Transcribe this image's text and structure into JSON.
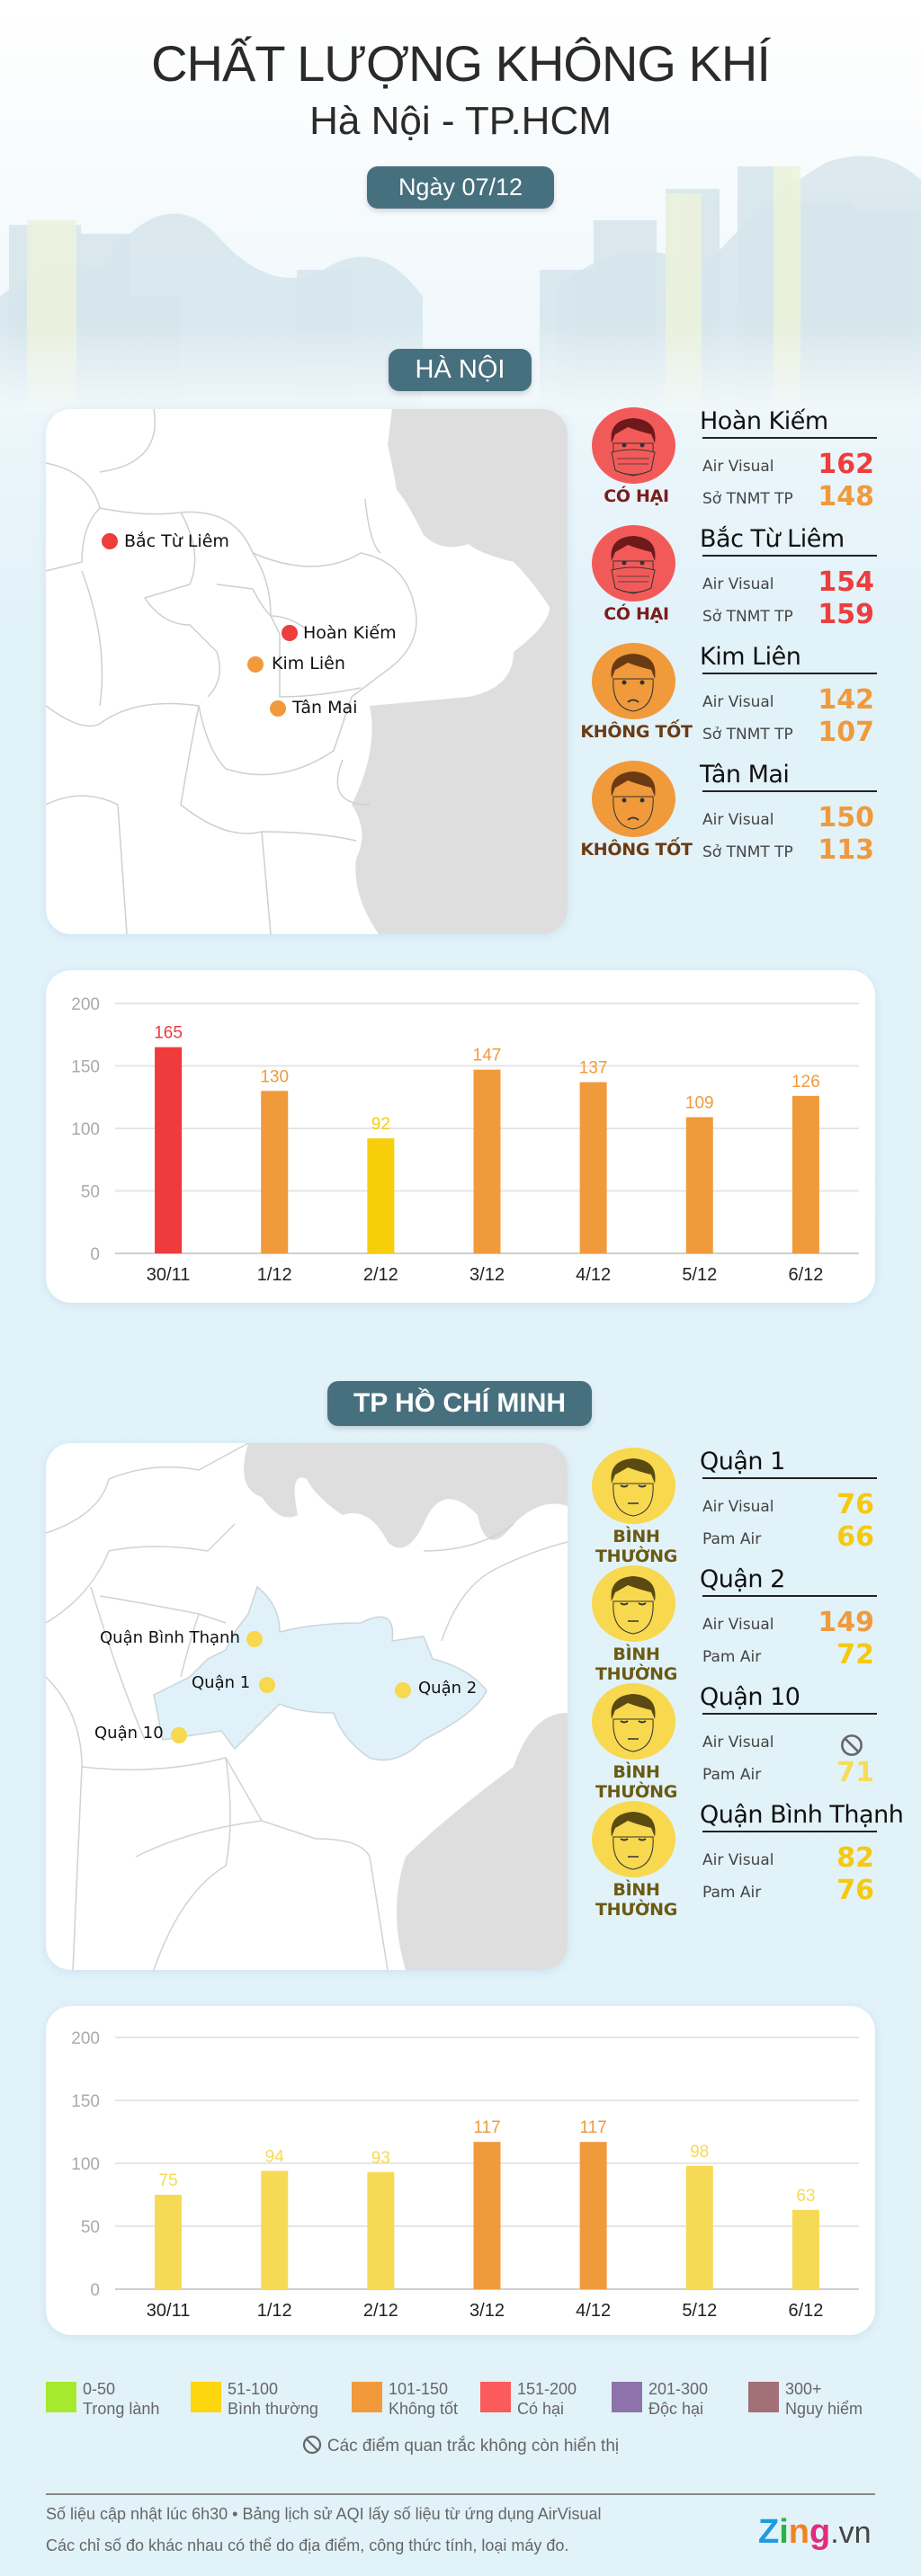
{
  "header": {
    "title": "CHẤT LƯỢNG KHÔNG KHÍ",
    "subtitle": "Hà Nội - TP.HCM",
    "date": "Ngày 07/12"
  },
  "colors": {
    "good": "#a6ea2e",
    "moderate": "#f7d21a",
    "unhealthy_sensitive": "#f09a3c",
    "unhealthy": "#f25a5a",
    "very_unhealthy": "#8e72ac",
    "hazardous": "#a37078",
    "pill": "#47707f",
    "value_red": "#ee3d3d",
    "value_orange": "#f09a3c",
    "value_yellow": "#f5c90f"
  },
  "hanoi": {
    "section_title": "HÀ NỘI",
    "stations": [
      {
        "name": "Hoàn Kiếm",
        "status": "CÓ HẠI",
        "face": "masked",
        "face_color": "#f25a5a",
        "status_color": "#7a1d1d",
        "dot_color": "#ee3d3d",
        "sources": [
          {
            "label": "Air Visual",
            "value": "162",
            "color": "#ee3d3d"
          },
          {
            "label": "Sở TNMT TP",
            "value": "148",
            "color": "#f09a3c"
          }
        ]
      },
      {
        "name": "Bắc Từ Liêm",
        "status": "CÓ HẠI",
        "face": "masked",
        "face_color": "#f25a5a",
        "status_color": "#7a1d1d",
        "dot_color": "#ee3d3d",
        "sources": [
          {
            "label": "Air Visual",
            "value": "154",
            "color": "#ee3d3d"
          },
          {
            "label": "Sở TNMT TP",
            "value": "159",
            "color": "#ee3d3d"
          }
        ]
      },
      {
        "name": "Kim Liên",
        "status": "KHÔNG TỐT",
        "face": "sad",
        "face_color": "#f09a3c",
        "status_color": "#6b3a12",
        "dot_color": "#f09a3c",
        "sources": [
          {
            "label": "Air Visual",
            "value": "142",
            "color": "#f09a3c"
          },
          {
            "label": "Sở TNMT TP",
            "value": "107",
            "color": "#f09a3c"
          }
        ]
      },
      {
        "name": "Tân Mai",
        "status": "KHÔNG TỐT",
        "face": "sad",
        "face_color": "#f09a3c",
        "status_color": "#6b3a12",
        "dot_color": "#f09a3c",
        "sources": [
          {
            "label": "Air Visual",
            "value": "150",
            "color": "#f09a3c"
          },
          {
            "label": "Sở TNMT TP",
            "value": "113",
            "color": "#f09a3c"
          }
        ]
      }
    ]
  },
  "hcm": {
    "section_title": "TP HỒ CHÍ MINH",
    "stations": [
      {
        "name": "Quận 1",
        "status": "BÌNH THƯỜNG",
        "face": "calm",
        "face_color": "#f7d84e",
        "status_color": "#6a5a12",
        "dot_color": "#f7d84e",
        "sources": [
          {
            "label": "Air Visual",
            "value": "76",
            "color": "#f5c90f"
          },
          {
            "label": "Pam Air",
            "value": "66",
            "color": "#f5c90f"
          }
        ]
      },
      {
        "name": "Quận 2",
        "status": "BÌNH THƯỜNG",
        "face": "calm",
        "face_color": "#f7d84e",
        "status_color": "#6a5a12",
        "dot_color": "#f7d84e",
        "sources": [
          {
            "label": "Air Visual",
            "value": "149",
            "color": "#f09a3c"
          },
          {
            "label": "Pam Air",
            "value": "72",
            "color": "#f5c90f"
          }
        ]
      },
      {
        "name": "Quận 10",
        "status": "BÌNH THƯỜNG",
        "face": "calm",
        "face_color": "#f7d84e",
        "status_color": "#6a5a12",
        "dot_color": "#f7d84e",
        "sources": [
          {
            "label": "Air Visual",
            "value": null,
            "icon": "no-data-icon",
            "color": "#666"
          },
          {
            "label": "Pam Air",
            "value": "71",
            "color": "#f7dc5a"
          }
        ]
      },
      {
        "name": "Quận Bình Thạnh",
        "status": "BÌNH THƯỜNG",
        "face": "calm",
        "face_color": "#f7d84e",
        "status_color": "#6a5a12",
        "dot_color": "#f7d84e",
        "sources": [
          {
            "label": "Air Visual",
            "value": "82",
            "color": "#f5c90f"
          },
          {
            "label": "Pam Air",
            "value": "76",
            "color": "#f5c90f"
          }
        ]
      }
    ]
  },
  "chart_data": [
    {
      "type": "bar",
      "title": "",
      "xlabel": "",
      "ylabel": "",
      "ylim": [
        0,
        200
      ],
      "yticks": [
        "0",
        "50",
        "100",
        "150",
        "200"
      ],
      "grid": true,
      "categories": [
        "30/11",
        "1/12",
        "2/12",
        "3/12",
        "4/12",
        "5/12",
        "6/12"
      ],
      "values": [
        165,
        130,
        92,
        147,
        137,
        109,
        126
      ],
      "colors": [
        "#ef3b3b",
        "#f09a3c",
        "#f6ce0a",
        "#f09a3c",
        "#f09a3c",
        "#f09a3c",
        "#f09a3c"
      ]
    },
    {
      "type": "bar",
      "title": "",
      "xlabel": "",
      "ylabel": "",
      "ylim": [
        0,
        200
      ],
      "yticks": [
        "0",
        "50",
        "100",
        "150",
        "200"
      ],
      "grid": true,
      "categories": [
        "30/11",
        "1/12",
        "2/12",
        "3/12",
        "4/12",
        "5/12",
        "6/12"
      ],
      "values": [
        75,
        94,
        93,
        117,
        117,
        98,
        63
      ],
      "colors": [
        "#f6da55",
        "#f6da55",
        "#f6da55",
        "#f09a3c",
        "#f09a3c",
        "#f6da55",
        "#f6da55"
      ]
    }
  ],
  "legend": [
    {
      "range": "0-50",
      "label": "Trong lành",
      "color": "#a6ea2e"
    },
    {
      "range": "51-100",
      "label": "Bình thường",
      "color": "#fdd60f"
    },
    {
      "range": "101-150",
      "label": "Không tốt",
      "color": "#f09a3c"
    },
    {
      "range": "151-200",
      "label": "Có hại",
      "color": "#fb5b5b"
    },
    {
      "range": "201-300",
      "label": "Độc hại",
      "color": "#8e72ac"
    },
    {
      "range": "300+",
      "label": "Nguy hiểm",
      "color": "#a37078"
    }
  ],
  "no_data_note": "Các điểm quan trắc không còn hiển thị",
  "footer": {
    "line1": "Số liệu cập nhật lúc 6h30 • Bảng lịch sử AQI lấy số liệu từ ứng dụng AirVisual",
    "line2": "Các chỉ số đo khác nhau có thể do địa điểm, công thức tính, loại máy đo.",
    "logo": "Zing.vn"
  }
}
